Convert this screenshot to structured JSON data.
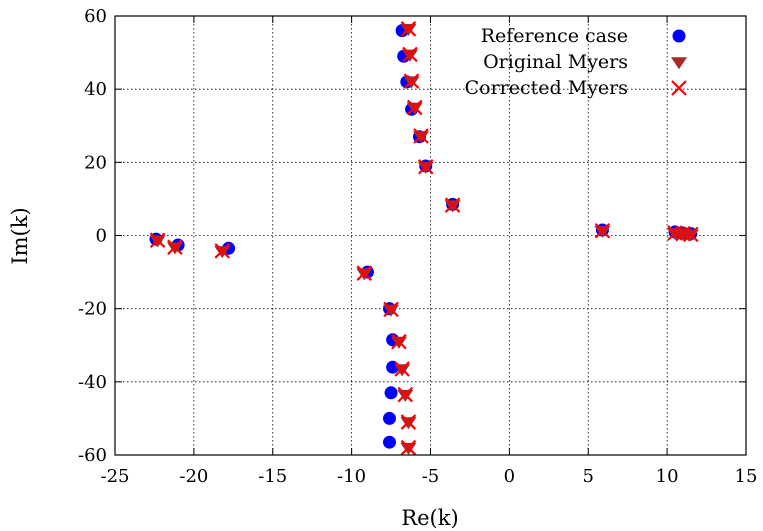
{
  "chart_data": {
    "type": "scatter",
    "xlabel": "Re(k)",
    "ylabel": "Im(k)",
    "xlim": [
      -25,
      15
    ],
    "ylim": [
      -60,
      60
    ],
    "xticks": [
      -25,
      -20,
      -15,
      -10,
      -5,
      0,
      5,
      10,
      15
    ],
    "yticks": [
      -60,
      -40,
      -20,
      0,
      20,
      40,
      60
    ],
    "grid": true,
    "legend_position": "top-right",
    "series": [
      {
        "name": "Reference case",
        "marker": "circle",
        "color": "#0000ff",
        "points": [
          [
            -22.4,
            -1
          ],
          [
            -21.0,
            -2.6
          ],
          [
            -17.8,
            -3.5
          ],
          [
            -9.0,
            -10
          ],
          [
            -7.6,
            -20
          ],
          [
            -7.4,
            -28.5
          ],
          [
            -7.4,
            -36
          ],
          [
            -7.5,
            -43
          ],
          [
            -7.6,
            -50
          ],
          [
            -7.6,
            -56.5
          ],
          [
            -3.6,
            8.5
          ],
          [
            -5.3,
            19
          ],
          [
            -5.7,
            27
          ],
          [
            -6.2,
            34.5
          ],
          [
            -6.5,
            42
          ],
          [
            -6.7,
            49
          ],
          [
            -6.8,
            56
          ],
          [
            5.9,
            1.5
          ],
          [
            10.5,
            1
          ],
          [
            11.0,
            0.7
          ],
          [
            11.5,
            0.5
          ]
        ]
      },
      {
        "name": "Original Myers",
        "marker": "triangle-down",
        "color": "#a52a2a",
        "points": [
          [
            -22.3,
            -1.3
          ],
          [
            -21.2,
            -3.2
          ],
          [
            -18.2,
            -4.2
          ],
          [
            -9.2,
            -10.3
          ],
          [
            -7.5,
            -20.2
          ],
          [
            -7.0,
            -29
          ],
          [
            -6.8,
            -36.5
          ],
          [
            -6.6,
            -43.5
          ],
          [
            -6.4,
            -51
          ],
          [
            -6.4,
            -58
          ],
          [
            -3.6,
            8.3
          ],
          [
            -5.3,
            18.8
          ],
          [
            -5.6,
            27.2
          ],
          [
            -6.0,
            35
          ],
          [
            -6.2,
            42.2
          ],
          [
            -6.3,
            49.5
          ],
          [
            -6.4,
            56.5
          ],
          [
            5.9,
            1.3
          ],
          [
            10.5,
            0.7
          ],
          [
            11.0,
            0.5
          ],
          [
            11.5,
            0.3
          ]
        ]
      },
      {
        "name": "Corrected Myers",
        "marker": "x",
        "color": "#ff0000",
        "points": [
          [
            -22.3,
            -1.3
          ],
          [
            -21.2,
            -3.2
          ],
          [
            -18.2,
            -4.2
          ],
          [
            -9.2,
            -10.3
          ],
          [
            -7.5,
            -20.2
          ],
          [
            -7.0,
            -29
          ],
          [
            -6.8,
            -36.5
          ],
          [
            -6.6,
            -43.5
          ],
          [
            -6.4,
            -51
          ],
          [
            -6.4,
            -58
          ],
          [
            -3.6,
            8.3
          ],
          [
            -5.3,
            18.8
          ],
          [
            -5.6,
            27.2
          ],
          [
            -6.0,
            35
          ],
          [
            -6.2,
            42.2
          ],
          [
            -6.3,
            49.5
          ],
          [
            -6.4,
            56.5
          ],
          [
            5.9,
            1.3
          ],
          [
            10.5,
            0.7
          ],
          [
            11.0,
            0.5
          ],
          [
            11.5,
            0.3
          ]
        ]
      }
    ]
  }
}
